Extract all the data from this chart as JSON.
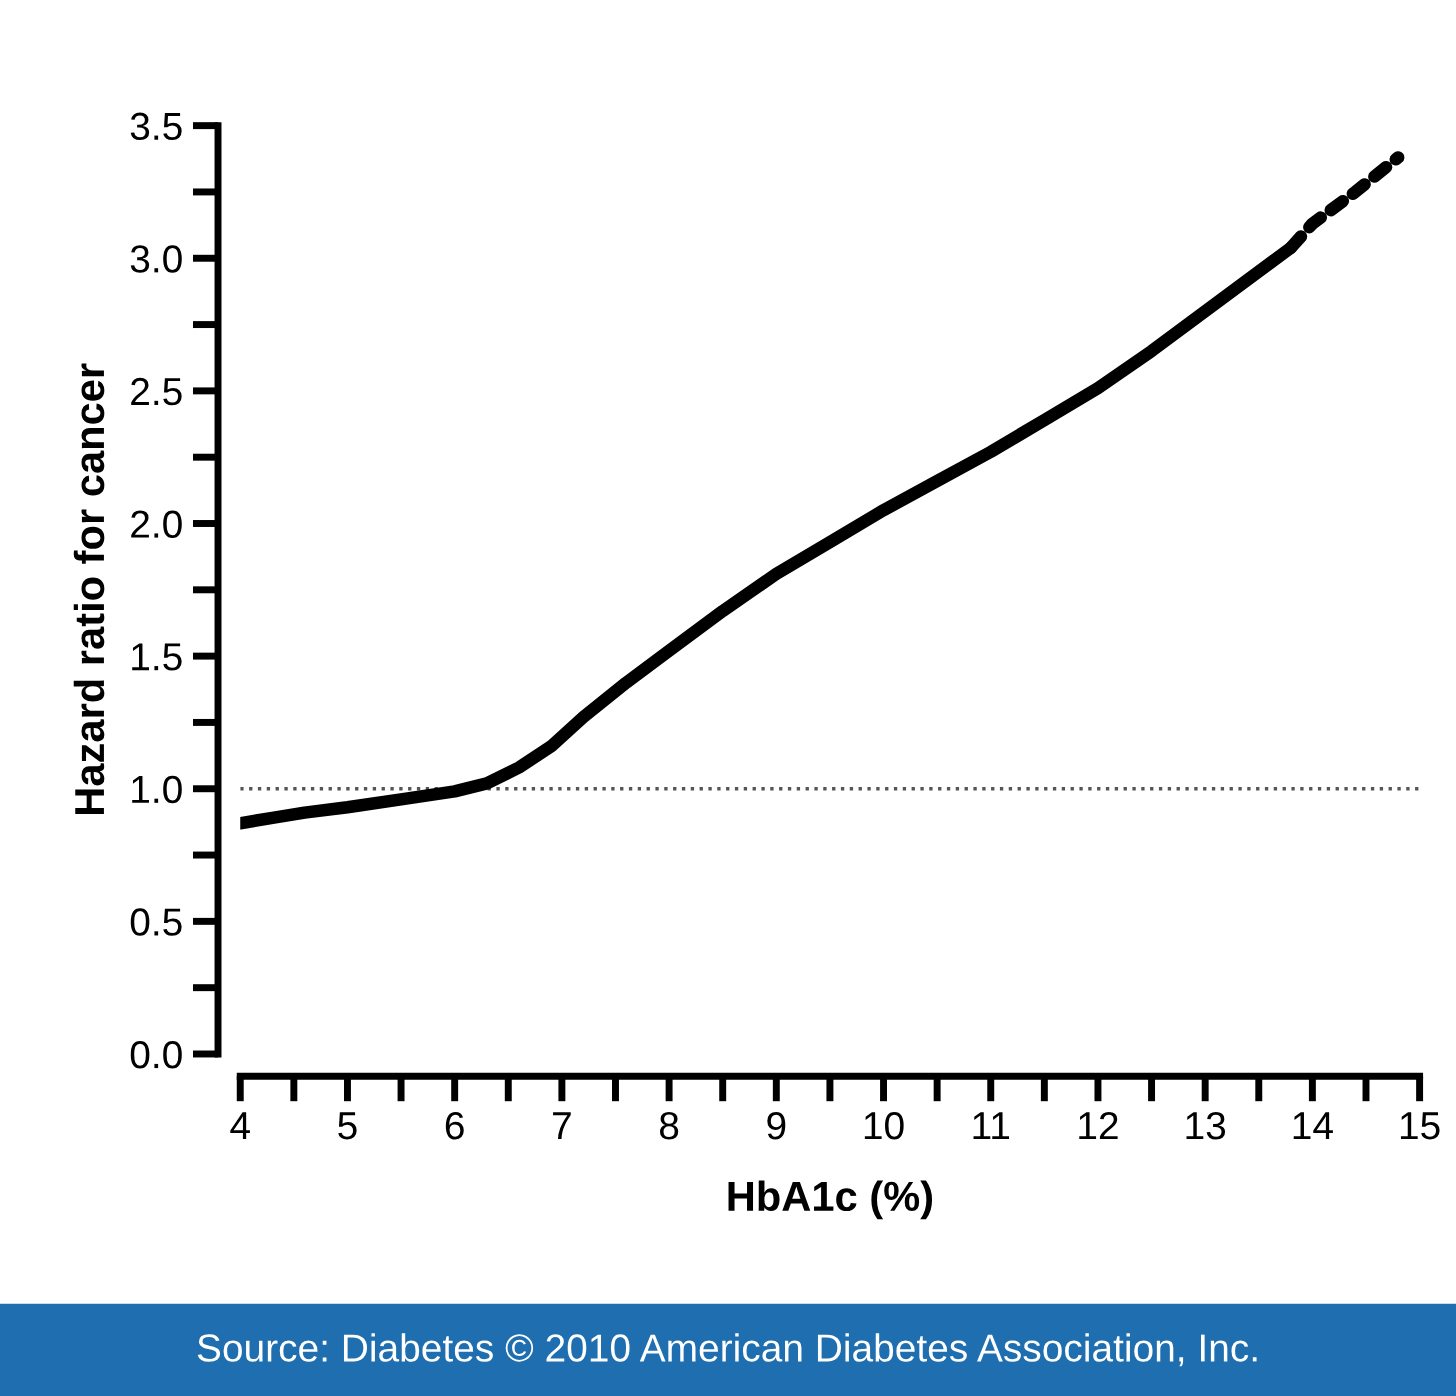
{
  "chart_data": {
    "type": "line",
    "xlabel": "HbA1c (%)",
    "ylabel": "Hazard ratio for cancer",
    "series": [
      {
        "color": "#000000",
        "line_style": "solid",
        "x": [
          4.0,
          4.3,
          4.6,
          5.0,
          5.5,
          6.0,
          6.3,
          6.6,
          6.9,
          7.2,
          7.6,
          8.0,
          8.5,
          9.0,
          9.5,
          10.0,
          10.5,
          11.0,
          11.5,
          12.0,
          12.5,
          13.0,
          13.5,
          13.8
        ],
        "values": [
          0.87,
          0.89,
          0.91,
          0.93,
          0.96,
          0.99,
          1.02,
          1.08,
          1.16,
          1.27,
          1.4,
          1.52,
          1.67,
          1.81,
          1.93,
          2.05,
          2.16,
          2.27,
          2.39,
          2.51,
          2.65,
          2.8,
          2.95,
          3.04
        ]
      },
      {
        "color": "#000000",
        "line_style": "dashed",
        "x": [
          13.8,
          14.0,
          14.4,
          14.8
        ],
        "values": [
          3.04,
          3.13,
          3.25,
          3.38
        ]
      }
    ],
    "xlim": [
      4,
      15
    ],
    "ylim": [
      0,
      3.5
    ],
    "xticks": [
      4,
      {
        "value": 4.5,
        "label": null
      },
      5,
      {
        "value": 5.5,
        "label": null
      },
      6,
      {
        "value": 6.5,
        "label": null
      },
      7,
      {
        "value": 7.5,
        "label": null
      },
      8,
      {
        "value": 8.5,
        "label": null
      },
      9,
      {
        "value": 9.5,
        "label": null
      },
      10,
      {
        "value": 10.5,
        "label": null
      },
      11,
      {
        "value": 11.5,
        "label": null
      },
      12,
      {
        "value": 12.5,
        "label": null
      },
      13,
      {
        "value": 13.5,
        "label": null
      },
      14,
      {
        "value": 14.5,
        "label": null
      },
      15
    ],
    "yticks": [
      {
        "value": 0,
        "label": "0.0"
      },
      {
        "value": 0.25,
        "label": null
      },
      0.5,
      {
        "value": 0.75,
        "label": null
      },
      {
        "value": 1,
        "label": "1.0"
      },
      {
        "value": 1.25,
        "label": null
      },
      1.5,
      {
        "value": 1.75,
        "label": null
      },
      {
        "value": 2,
        "label": "2.0"
      },
      {
        "value": 2.25,
        "label": null
      },
      2.5,
      {
        "value": 2.75,
        "label": null
      },
      {
        "value": 3,
        "label": "3.0"
      },
      {
        "value": 3.25,
        "label": null
      },
      3.5
    ],
    "ref_lines": [
      {
        "axis": "y",
        "value": 1,
        "color": "#555555",
        "line_style": "dotted"
      }
    ],
    "grid": false,
    "legend": false,
    "marker": "none",
    "annotations": [
      "Source: Diabetes © 2010 American Diabetes Association, Inc."
    ]
  }
}
